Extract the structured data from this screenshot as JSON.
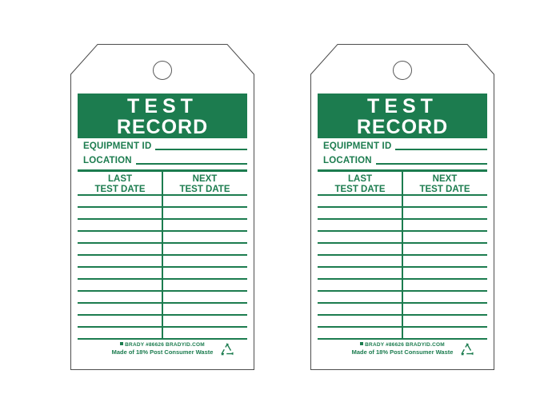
{
  "page": {
    "background_color": "#ffffff",
    "tag_count": 2
  },
  "colors": {
    "tag_green": "#1c7c4f",
    "outline_gray": "#4d4d4d",
    "hole_gray": "#5a5a5a",
    "title_text": "#ffffff"
  },
  "tag": {
    "title_line1": "TEST",
    "title_line2": "RECORD",
    "fields": [
      {
        "label": "EQUIPMENT ID",
        "value": ""
      },
      {
        "label": "LOCATION",
        "value": ""
      }
    ],
    "table": {
      "columns": [
        {
          "line1": "LAST",
          "line2": "TEST DATE"
        },
        {
          "line1": "NEXT",
          "line2": "TEST DATE"
        }
      ],
      "row_count": 12,
      "rows_empty": true
    },
    "footer": {
      "brand_line": "BRADY #86626 BRADYID.COM",
      "recycled_note": "Made of 18% Post Consumer Waste",
      "icons": [
        "brady-logo-icon",
        "recycling-icon"
      ]
    },
    "hole": "hang-hole"
  }
}
